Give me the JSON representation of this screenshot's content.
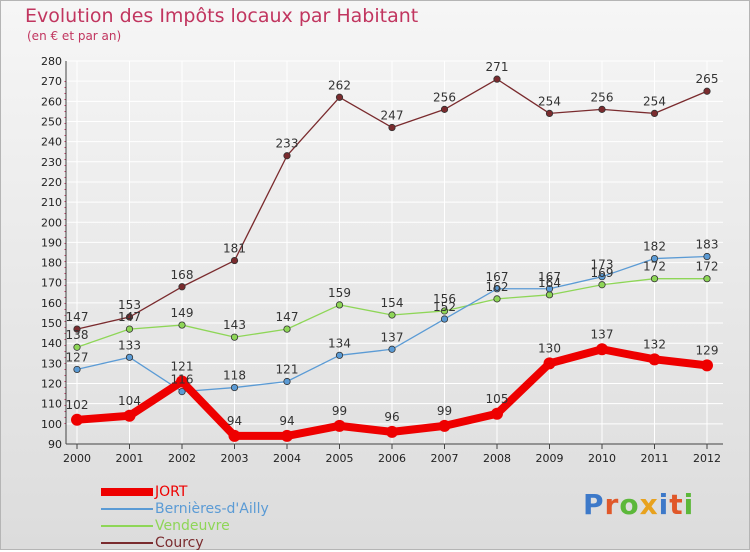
{
  "title": "Evolution des Impôts locaux par Habitant",
  "subtitle": "(en € et par an)",
  "colors": {
    "title": "#c1355f",
    "grid": "#ffffff",
    "axis_text": "#222222"
  },
  "logo": {
    "text": "Proxiti",
    "letter_colors": [
      "#3d79c9",
      "#e0582a",
      "#5cb83a",
      "#e8a21e",
      "#3d79c9",
      "#e0582a",
      "#5cb83a"
    ]
  },
  "chart_data": {
    "type": "line",
    "title": "Evolution des Impôts locaux par Habitant",
    "subtitle": "(en € et par an)",
    "x": [
      "2000",
      "2001",
      "2002",
      "2003",
      "2004",
      "2005",
      "2006",
      "2007",
      "2008",
      "2009",
      "2010",
      "2011",
      "2012"
    ],
    "ylim": [
      90,
      280
    ],
    "ytick_step": 10,
    "grid": true,
    "legend_position": "bottom-left",
    "series": [
      {
        "name": "Courcy",
        "color": "#7a2b2e",
        "values": [
          147,
          153,
          168,
          181,
          233,
          262,
          247,
          256,
          271,
          254,
          256,
          254,
          265
        ]
      },
      {
        "name": "Vendeuvre",
        "color": "#8ed657",
        "values": [
          138,
          147,
          149,
          143,
          147,
          159,
          154,
          156,
          162,
          164,
          169,
          172,
          172
        ]
      },
      {
        "name": "Bernières-d'Ailly",
        "color": "#5b9bd5",
        "values": [
          127,
          133,
          116,
          118,
          121,
          134,
          137,
          152,
          167,
          167,
          173,
          182,
          183
        ]
      },
      {
        "name": "JORT",
        "color": "#ee0000",
        "values": [
          102,
          104,
          121,
          94,
          94,
          99,
          96,
          99,
          105,
          130,
          137,
          132,
          129
        ]
      }
    ],
    "legend_order": [
      "JORT",
      "Bernières-d'Ailly",
      "Vendeuvre",
      "Courcy"
    ]
  }
}
